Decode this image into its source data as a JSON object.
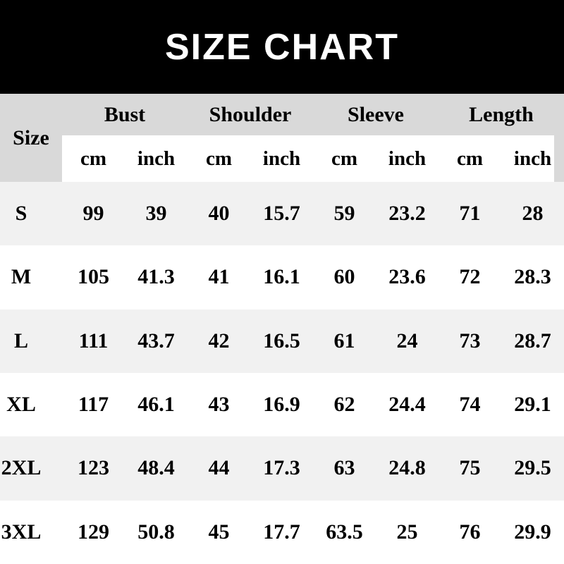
{
  "banner": {
    "title": "SIZE CHART"
  },
  "colors": {
    "banner_bg": "#000000",
    "banner_text": "#ffffff",
    "header_bg": "#d9d9d9",
    "subheader_bg": "#ffffff",
    "row_alt_bg": "#f1f1f1",
    "row_bg": "#ffffff",
    "text": "#000000"
  },
  "table": {
    "size_header": "Size",
    "group_headers": [
      "Bust",
      "Shoulder",
      "Sleeve",
      "Length"
    ],
    "unit_headers": [
      "cm",
      "inch",
      "cm",
      "inch",
      "cm",
      "inch",
      "cm",
      "inch"
    ]
  },
  "chart_data": {
    "type": "table",
    "title": "SIZE CHART",
    "columns": [
      "Size",
      "Bust cm",
      "Bust inch",
      "Shoulder cm",
      "Shoulder inch",
      "Sleeve cm",
      "Sleeve inch",
      "Length cm",
      "Length inch"
    ],
    "rows": [
      [
        "S",
        99,
        39,
        40,
        15.7,
        59,
        23.2,
        71,
        28
      ],
      [
        "M",
        105,
        41.3,
        41,
        16.1,
        60,
        23.6,
        72,
        28.3
      ],
      [
        "L",
        111,
        43.7,
        42,
        16.5,
        61,
        24,
        73,
        28.7
      ],
      [
        "XL",
        117,
        46.1,
        43,
        16.9,
        62,
        24.4,
        74,
        29.1
      ],
      [
        "2XL",
        123,
        48.4,
        44,
        17.3,
        63,
        24.8,
        75,
        29.5
      ],
      [
        "3XL",
        129,
        50.8,
        45,
        17.7,
        63.5,
        25,
        76,
        29.9
      ]
    ]
  }
}
